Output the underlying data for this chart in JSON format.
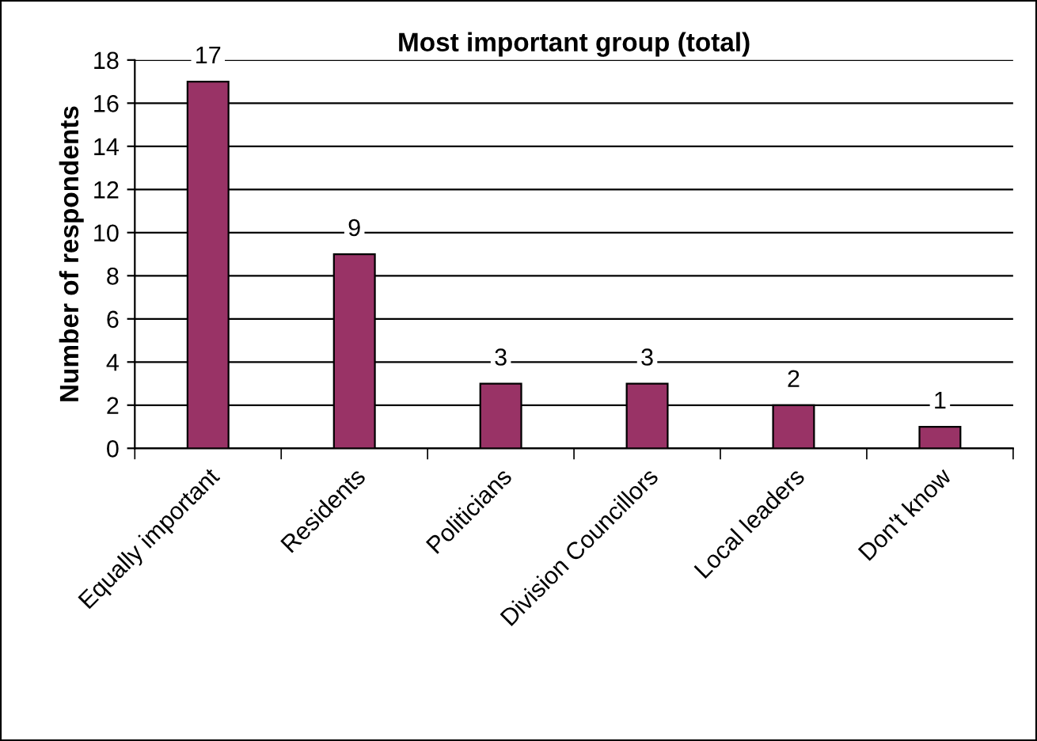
{
  "chart_data": {
    "type": "bar",
    "title": "Most important group (total)",
    "ylabel": "Number of respondents",
    "categories": [
      "Equally important",
      "Residents",
      "Politicians",
      "Division Councillors",
      "Local leaders",
      "Don't know"
    ],
    "values": [
      17,
      9,
      3,
      3,
      2,
      1
    ],
    "color": "#993366",
    "ylim": [
      0,
      18
    ],
    "yticks": [
      0,
      2,
      4,
      6,
      8,
      10,
      12,
      14,
      16,
      18
    ],
    "grid": "y",
    "data_labels": true,
    "legend": false
  }
}
